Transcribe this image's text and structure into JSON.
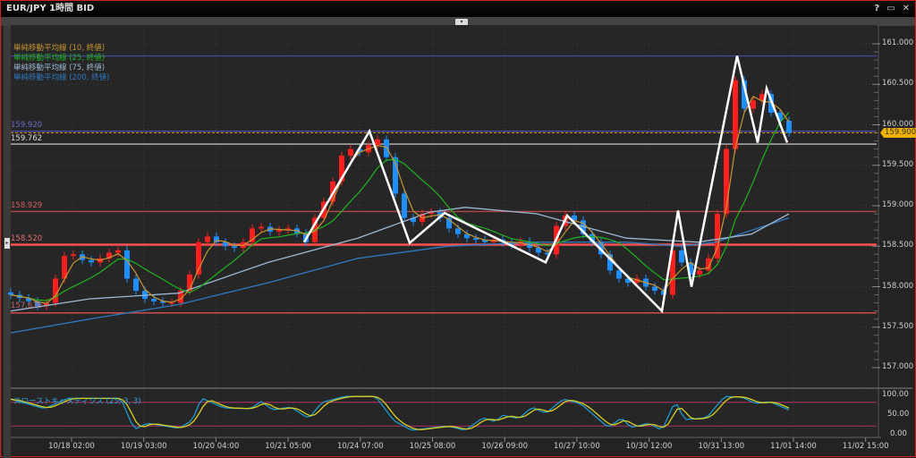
{
  "window": {
    "title": "EUR/JPY 1時間 BID",
    "help_icon": "?",
    "maximize_icon": "▭",
    "close_icon": "✕"
  },
  "legend": [
    {
      "label": "単純移動平均線 (10, 終値)",
      "color": "#c89632"
    },
    {
      "label": "単純移動平均線 (25, 終値)",
      "color": "#1fb51f"
    },
    {
      "label": "単純移動平均線 (75, 終値)",
      "color": "#9bb8d4"
    },
    {
      "label": "単純移動平均線 (200, 終値)",
      "color": "#2f78c0"
    }
  ],
  "horizontal_lines": [
    {
      "price": 160.85,
      "label": "",
      "color": "#44449a"
    },
    {
      "price": 159.92,
      "label": "159.920",
      "color": "#5555bb"
    },
    {
      "price": 159.762,
      "label": "159.762",
      "color": "#bbbbbb"
    },
    {
      "price": 158.929,
      "label": "158.929",
      "color": "#b04848"
    },
    {
      "price": 158.52,
      "label": "158.520",
      "color": "#ff5050"
    },
    {
      "price": 157.676,
      "label": "157.676",
      "color": "#e05050"
    }
  ],
  "current_price": {
    "label": "159.900",
    "value": 159.9,
    "color": "#f0b000"
  },
  "stochastic": {
    "label": "スローストキャスティクス (25, 3, 3)",
    "levels": [
      80,
      20
    ],
    "axis_labels": [
      "100.00",
      "50.00",
      "0.00"
    ],
    "k": [
      [
        0,
        88
      ],
      [
        3.8,
        64
      ],
      [
        6.3,
        90
      ],
      [
        12.3,
        90
      ],
      [
        13.8,
        11
      ],
      [
        15.3,
        27
      ],
      [
        18.8,
        14
      ],
      [
        20.3,
        34
      ],
      [
        21.3,
        91
      ],
      [
        23.8,
        66
      ],
      [
        26.8,
        64
      ],
      [
        28,
        82
      ],
      [
        29.3,
        61
      ],
      [
        31.3,
        68
      ],
      [
        33.3,
        39
      ],
      [
        34.8,
        80
      ],
      [
        37.3,
        95
      ],
      [
        40.8,
        95
      ],
      [
        42.8,
        34
      ],
      [
        44.8,
        9
      ],
      [
        48.8,
        20
      ],
      [
        50.8,
        9
      ],
      [
        52.8,
        41
      ],
      [
        54.3,
        30
      ],
      [
        54.8,
        48
      ],
      [
        56.8,
        39
      ],
      [
        58.3,
        68
      ],
      [
        59.8,
        52
      ],
      [
        61.8,
        89
      ],
      [
        63.8,
        75
      ],
      [
        66.8,
        16
      ],
      [
        68.3,
        41
      ],
      [
        69.3,
        16
      ],
      [
        71.3,
        27
      ],
      [
        72.8,
        9
      ],
      [
        74.3,
        84
      ],
      [
        75.3,
        36
      ],
      [
        77.8,
        41
      ],
      [
        79.8,
        95
      ],
      [
        81.8,
        93
      ],
      [
        83.3,
        77
      ],
      [
        84.8,
        82
      ],
      [
        87,
        61
      ]
    ]
  },
  "chart_data": {
    "type": "candlestick",
    "title": "EUR/JPY 1時間 BID",
    "ylim": [
      156.8,
      161.25
    ],
    "y_ticks": [
      "161.000",
      "160.500",
      "160.000",
      "159.500",
      "159.000",
      "158.500",
      "158.000",
      "157.500",
      "157.000"
    ],
    "x_tick_labels": [
      "10/18 02:00",
      "10/19 03:00",
      "10/20 04:00",
      "10/21 05:00",
      "10/24 07:00",
      "10/25 08:00",
      "10/26 09:00",
      "10/27 10:00",
      "10/30 12:00",
      "10/31 13:00",
      "11/01 14:00",
      "11/02 15:00"
    ],
    "grid": true,
    "closes": [
      157.9,
      157.86,
      157.82,
      157.76,
      157.8,
      158.1,
      158.38,
      158.4,
      158.33,
      158.3,
      158.35,
      158.42,
      158.45,
      158.1,
      157.95,
      157.85,
      157.82,
      157.8,
      157.8,
      157.95,
      158.15,
      158.55,
      158.62,
      158.55,
      158.5,
      158.48,
      158.55,
      158.72,
      158.74,
      158.68,
      158.7,
      158.72,
      158.66,
      158.55,
      158.85,
      159.05,
      159.3,
      159.62,
      159.7,
      159.66,
      159.75,
      159.82,
      159.6,
      159.15,
      158.85,
      158.8,
      158.9,
      158.92,
      158.85,
      158.72,
      158.65,
      158.6,
      158.58,
      158.55,
      158.58,
      158.55,
      158.52,
      158.56,
      158.48,
      158.42,
      158.4,
      158.75,
      158.88,
      158.82,
      158.65,
      158.55,
      158.4,
      158.2,
      158.1,
      158.05,
      158.1,
      158.0,
      157.95,
      157.9,
      158.45,
      158.3,
      158.15,
      158.2,
      158.35,
      158.9,
      159.7,
      160.55,
      160.2,
      160.3,
      160.38,
      160.15,
      160.05,
      159.9
    ],
    "ma75": [
      [
        0,
        157.7
      ],
      [
        8.8,
        157.85
      ],
      [
        18.8,
        157.92
      ],
      [
        28.8,
        158.3
      ],
      [
        38.8,
        158.6
      ],
      [
        46.8,
        158.92
      ],
      [
        50.8,
        158.98
      ],
      [
        58.8,
        158.9
      ],
      [
        68.8,
        158.6
      ],
      [
        76.8,
        158.55
      ],
      [
        82.8,
        158.65
      ],
      [
        87,
        158.9
      ]
    ],
    "ma200": [
      [
        0,
        157.43
      ],
      [
        8.8,
        157.6
      ],
      [
        18.8,
        157.78
      ],
      [
        28.8,
        158.05
      ],
      [
        38.8,
        158.35
      ],
      [
        48.8,
        158.5
      ],
      [
        58.8,
        158.55
      ],
      [
        68.8,
        158.55
      ],
      [
        74.8,
        158.5
      ],
      [
        78.8,
        158.55
      ],
      [
        87,
        158.85
      ]
    ],
    "zigzag": [
      [
        32.8,
        158.55
      ],
      [
        40.1,
        159.92
      ],
      [
        44.6,
        158.54
      ],
      [
        48.5,
        158.91
      ],
      [
        59.8,
        158.3
      ],
      [
        62.2,
        158.88
      ],
      [
        72.8,
        157.7
      ],
      [
        74.6,
        158.94
      ],
      [
        76.1,
        158.0
      ],
      [
        81.2,
        160.85
      ],
      [
        83.5,
        159.78
      ],
      [
        84.5,
        160.45
      ],
      [
        86.8,
        159.78
      ]
    ]
  }
}
